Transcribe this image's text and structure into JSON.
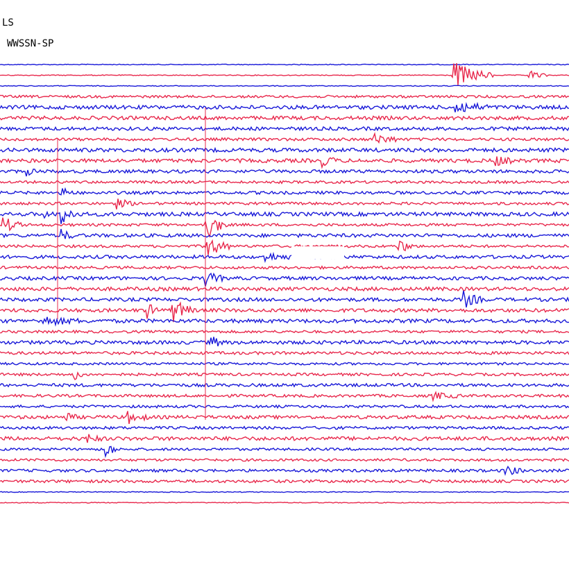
{
  "header": {
    "station": "LS",
    "filter": "WWSSN-SP"
  }
}
